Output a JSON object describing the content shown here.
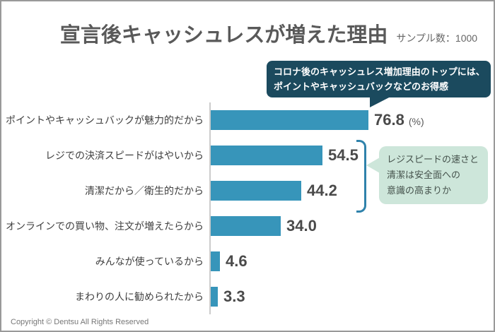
{
  "header": {
    "title": "宣言後キャッシュレスが増えた理由",
    "sample_label": "サンプル数：1000"
  },
  "annotations": {
    "top_bubble": {
      "lines": [
        "コロナ後のキャッシュレス増加理由のトップには、",
        "ポイントやキャッシュバックなどのお得感"
      ],
      "bg_color": "#1b4a5e",
      "text_color": "#ffffff"
    },
    "side_bubble": {
      "lines": [
        "レジスピードの速さと",
        "清潔は安全面への",
        "意識の高まりか"
      ],
      "bg_color": "#cde6da",
      "text_color": "#44514b"
    }
  },
  "chart_data": {
    "type": "bar",
    "orientation": "horizontal",
    "title": "宣言後キャッシュレスが増えた理由",
    "categories": [
      "ポイントやキャッシュバックが魅力的だから",
      "レジでの決済スピードがはやいから",
      "清潔だから／衛生的だから",
      "オンラインでの買い物、注文が増えたらから",
      "みんなが使っているから",
      "まわりの人に勧められたから"
    ],
    "values": [
      76.8,
      54.5,
      44.2,
      34.0,
      4.6,
      3.3
    ],
    "value_labels": [
      "76.8",
      "54.5",
      "44.2",
      "34.0",
      "4.6",
      "3.3"
    ],
    "value_suffix": "(%)",
    "unit": "percent",
    "xlim": [
      0,
      100
    ],
    "grid": false,
    "legend": false,
    "bar_color": "#3795ba",
    "axis_color": "#cccccc",
    "bracket_color": "#2f82ab",
    "bracket_rows": [
      1,
      2
    ]
  },
  "footer": {
    "copyright": "Copyright © Dentsu All Rights Reserved"
  }
}
